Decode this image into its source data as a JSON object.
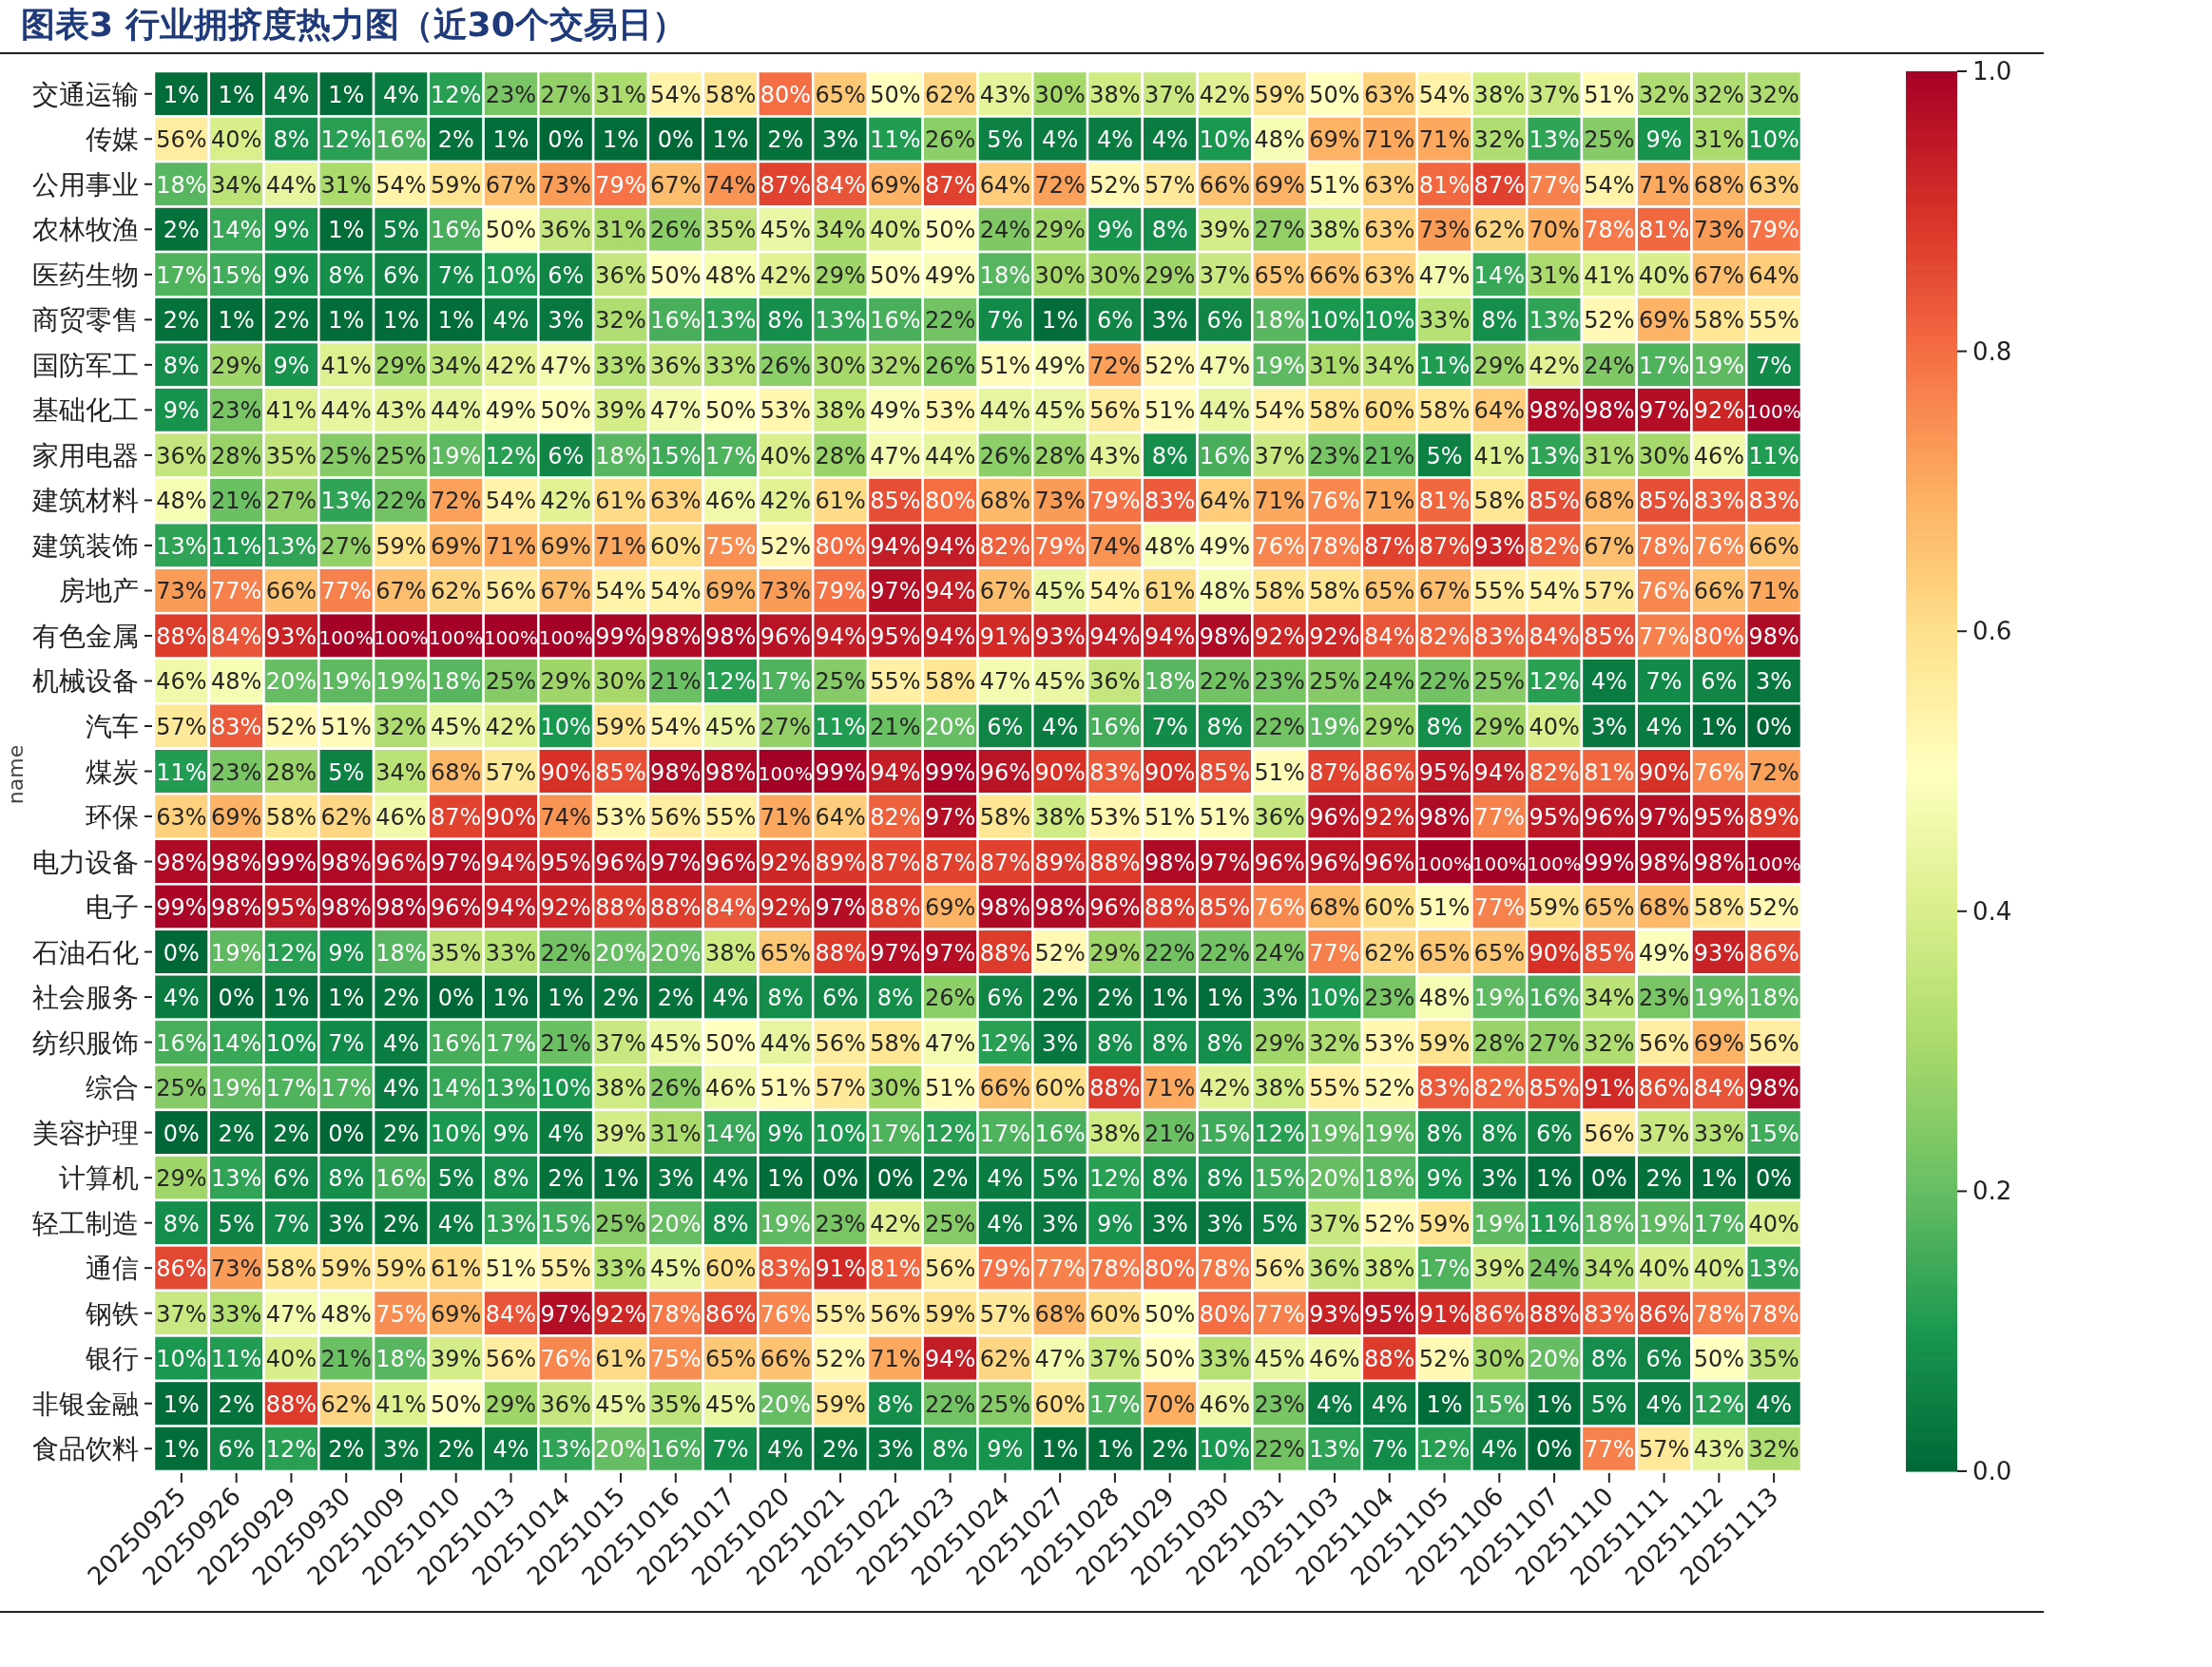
{
  "chart_data": {
    "type": "heatmap",
    "title": "图表3 行业拥挤度热力图（近30个交易日）",
    "ylabel": "name",
    "categories": [
      "20250925",
      "20250926",
      "20250929",
      "20250930",
      "20251009",
      "20251010",
      "20251013",
      "20251014",
      "20251015",
      "20251016",
      "20251017",
      "20251020",
      "20251021",
      "20251022",
      "20251023",
      "20251024",
      "20251027",
      "20251028",
      "20251029",
      "20251030",
      "20251031",
      "20251103",
      "20251104",
      "20251105",
      "20251106",
      "20251107",
      "20251110",
      "20251111",
      "20251112",
      "20251113"
    ],
    "y_categories": [
      "交通运输",
      "传媒",
      "公用事业",
      "农林牧渔",
      "医药生物",
      "商贸零售",
      "国防军工",
      "基础化工",
      "家用电器",
      "建筑材料",
      "建筑装饰",
      "房地产",
      "有色金属",
      "机械设备",
      "汽车",
      "煤炭",
      "环保",
      "电力设备",
      "电子",
      "石油石化",
      "社会服务",
      "纺织服饰",
      "综合",
      "美容护理",
      "计算机",
      "轻工制造",
      "通信",
      "钢铁",
      "银行",
      "非银金融",
      "食品饮料"
    ],
    "cells": [
      [
        0.01,
        0.01,
        0.04,
        0.01,
        0.04,
        0.12,
        0.23,
        0.27,
        0.31,
        0.54,
        0.58,
        0.8,
        0.65,
        0.5,
        0.62,
        0.43,
        0.3,
        0.38,
        0.37,
        0.42,
        0.59,
        0.5,
        0.63,
        0.54,
        0.38,
        0.37,
        0.51,
        0.32,
        0.32,
        0.32
      ],
      [
        0.56,
        0.4,
        0.08,
        0.12,
        0.16,
        0.02,
        0.01,
        0,
        0.01,
        0,
        0.01,
        0.02,
        0.03,
        0.11,
        0.26,
        0.05,
        0.04,
        0.04,
        0.04,
        0.1,
        0.48,
        0.69,
        0.71,
        0.71,
        0.32,
        0.13,
        0.25,
        0.09,
        0.31,
        0.1
      ],
      [
        0.18,
        0.34,
        0.44,
        0.31,
        0.54,
        0.59,
        0.67,
        0.73,
        0.79,
        0.67,
        0.74,
        0.87,
        0.84,
        0.69,
        0.87,
        0.64,
        0.72,
        0.52,
        0.57,
        0.66,
        0.69,
        0.51,
        0.63,
        0.81,
        0.87,
        0.77,
        0.54,
        0.71,
        0.68,
        0.63
      ],
      [
        0.02,
        0.14,
        0.09,
        0.01,
        0.05,
        0.16,
        0.5,
        0.36,
        0.31,
        0.26,
        0.35,
        0.45,
        0.34,
        0.4,
        0.5,
        0.24,
        0.29,
        0.09,
        0.08,
        0.39,
        0.27,
        0.38,
        0.63,
        0.73,
        0.62,
        0.7,
        0.78,
        0.81,
        0.73,
        0.79
      ],
      [
        0.17,
        0.15,
        0.09,
        0.08,
        0.06,
        0.07,
        0.1,
        0.06,
        0.36,
        0.5,
        0.48,
        0.42,
        0.29,
        0.5,
        0.49,
        0.18,
        0.3,
        0.3,
        0.29,
        0.37,
        0.65,
        0.66,
        0.63,
        0.47,
        0.14,
        0.31,
        0.41,
        0.4,
        0.67,
        0.64
      ],
      [
        0.02,
        0.01,
        0.02,
        0.01,
        0.01,
        0.01,
        0.04,
        0.03,
        0.32,
        0.16,
        0.13,
        0.08,
        0.13,
        0.16,
        0.22,
        0.07,
        0.01,
        0.06,
        0.03,
        0.06,
        0.18,
        0.1,
        0.1,
        0.33,
        0.08,
        0.13,
        0.52,
        0.69,
        0.58,
        0.55
      ],
      [
        0.08,
        0.29,
        0.09,
        0.41,
        0.29,
        0.34,
        0.42,
        0.47,
        0.33,
        0.36,
        0.33,
        0.26,
        0.3,
        0.32,
        0.26,
        0.51,
        0.49,
        0.72,
        0.52,
        0.47,
        0.19,
        0.31,
        0.34,
        0.11,
        0.29,
        0.42,
        0.24,
        0.17,
        0.19,
        0.07
      ],
      [
        0.09,
        0.23,
        0.41,
        0.44,
        0.43,
        0.44,
        0.49,
        0.5,
        0.39,
        0.47,
        0.5,
        0.53,
        0.38,
        0.49,
        0.53,
        0.44,
        0.45,
        0.56,
        0.51,
        0.44,
        0.54,
        0.58,
        0.6,
        0.58,
        0.64,
        0.98,
        0.98,
        0.97,
        0.92,
        1
      ],
      [
        0.36,
        0.28,
        0.35,
        0.25,
        0.25,
        0.19,
        0.12,
        0.06,
        0.18,
        0.15,
        0.17,
        0.4,
        0.28,
        0.47,
        0.44,
        0.26,
        0.28,
        0.43,
        0.08,
        0.16,
        0.37,
        0.23,
        0.21,
        0.05,
        0.41,
        0.13,
        0.31,
        0.3,
        0.46,
        0.11
      ],
      [
        0.48,
        0.21,
        0.27,
        0.13,
        0.22,
        0.72,
        0.54,
        0.42,
        0.61,
        0.63,
        0.46,
        0.42,
        0.61,
        0.85,
        0.8,
        0.68,
        0.73,
        0.79,
        0.83,
        0.64,
        0.71,
        0.76,
        0.71,
        0.81,
        0.58,
        0.85,
        0.68,
        0.85,
        0.83,
        0.83
      ],
      [
        0.13,
        0.11,
        0.13,
        0.27,
        0.59,
        0.69,
        0.71,
        0.69,
        0.71,
        0.6,
        0.75,
        0.52,
        0.8,
        0.94,
        0.94,
        0.82,
        0.79,
        0.74,
        0.48,
        0.49,
        0.76,
        0.78,
        0.87,
        0.87,
        0.93,
        0.82,
        0.67,
        0.78,
        0.76,
        0.66
      ],
      [
        0.73,
        0.77,
        0.66,
        0.77,
        0.67,
        0.62,
        0.56,
        0.67,
        0.54,
        0.54,
        0.69,
        0.73,
        0.79,
        0.97,
        0.94,
        0.67,
        0.45,
        0.54,
        0.61,
        0.48,
        0.58,
        0.58,
        0.65,
        0.67,
        0.55,
        0.54,
        0.57,
        0.76,
        0.66,
        0.71
      ],
      [
        0.88,
        0.84,
        0.93,
        1,
        1,
        1,
        1,
        1,
        0.99,
        0.98,
        0.98,
        0.96,
        0.94,
        0.95,
        0.94,
        0.91,
        0.93,
        0.94,
        0.94,
        0.98,
        0.92,
        0.92,
        0.84,
        0.82,
        0.83,
        0.84,
        0.85,
        0.77,
        0.8,
        0.98
      ],
      [
        0.46,
        0.48,
        0.2,
        0.19,
        0.19,
        0.18,
        0.25,
        0.29,
        0.3,
        0.21,
        0.12,
        0.17,
        0.25,
        0.55,
        0.58,
        0.47,
        0.45,
        0.36,
        0.18,
        0.22,
        0.23,
        0.25,
        0.24,
        0.22,
        0.25,
        0.12,
        0.04,
        0.07,
        0.06,
        0.03
      ],
      [
        0.57,
        0.83,
        0.52,
        0.51,
        0.32,
        0.45,
        0.42,
        0.1,
        0.59,
        0.54,
        0.45,
        0.27,
        0.11,
        0.21,
        0.2,
        0.06,
        0.04,
        0.16,
        0.07,
        0.08,
        0.22,
        0.19,
        0.29,
        0.08,
        0.29,
        0.4,
        0.03,
        0.04,
        0.01,
        0
      ],
      [
        0.11,
        0.23,
        0.28,
        0.05,
        0.34,
        0.68,
        0.57,
        0.9,
        0.85,
        0.98,
        0.98,
        1,
        0.99,
        0.94,
        0.99,
        0.96,
        0.9,
        0.83,
        0.9,
        0.85,
        0.51,
        0.87,
        0.86,
        0.95,
        0.94,
        0.82,
        0.81,
        0.9,
        0.76,
        0.72
      ],
      [
        0.63,
        0.69,
        0.58,
        0.62,
        0.46,
        0.87,
        0.9,
        0.74,
        0.53,
        0.56,
        0.55,
        0.71,
        0.64,
        0.82,
        0.97,
        0.58,
        0.38,
        0.53,
        0.51,
        0.51,
        0.36,
        0.96,
        0.92,
        0.98,
        0.77,
        0.95,
        0.96,
        0.97,
        0.95,
        0.89
      ],
      [
        0.98,
        0.98,
        0.99,
        0.98,
        0.96,
        0.97,
        0.94,
        0.95,
        0.96,
        0.97,
        0.96,
        0.92,
        0.89,
        0.87,
        0.87,
        0.87,
        0.89,
        0.88,
        0.98,
        0.97,
        0.96,
        0.96,
        0.96,
        1,
        1,
        1,
        0.99,
        0.98,
        0.98,
        1
      ],
      [
        0.99,
        0.98,
        0.95,
        0.98,
        0.98,
        0.96,
        0.94,
        0.92,
        0.88,
        0.88,
        0.84,
        0.92,
        0.97,
        0.88,
        0.69,
        0.98,
        0.98,
        0.96,
        0.88,
        0.85,
        0.76,
        0.68,
        0.6,
        0.51,
        0.77,
        0.59,
        0.65,
        0.68,
        0.58,
        0.52
      ],
      [
        0,
        0.19,
        0.12,
        0.09,
        0.18,
        0.35,
        0.33,
        0.22,
        0.2,
        0.2,
        0.38,
        0.65,
        0.88,
        0.97,
        0.97,
        0.88,
        0.52,
        0.29,
        0.22,
        0.22,
        0.24,
        0.77,
        0.62,
        0.65,
        0.65,
        0.9,
        0.85,
        0.49,
        0.93,
        0.86
      ],
      [
        0.04,
        0,
        0.01,
        0.01,
        0.02,
        0,
        0.01,
        0.01,
        0.02,
        0.02,
        0.04,
        0.08,
        0.06,
        0.08,
        0.26,
        0.06,
        0.02,
        0.02,
        0.01,
        0.01,
        0.03,
        0.1,
        0.23,
        0.48,
        0.19,
        0.16,
        0.34,
        0.23,
        0.19,
        0.18
      ],
      [
        0.16,
        0.14,
        0.1,
        0.07,
        0.04,
        0.16,
        0.17,
        0.21,
        0.37,
        0.45,
        0.5,
        0.44,
        0.56,
        0.58,
        0.47,
        0.12,
        0.03,
        0.08,
        0.08,
        0.08,
        0.29,
        0.32,
        0.53,
        0.59,
        0.28,
        0.27,
        0.32,
        0.56,
        0.69,
        0.56
      ],
      [
        0.25,
        0.19,
        0.17,
        0.17,
        0.04,
        0.14,
        0.13,
        0.1,
        0.38,
        0.26,
        0.46,
        0.51,
        0.57,
        0.3,
        0.51,
        0.66,
        0.6,
        0.88,
        0.71,
        0.42,
        0.38,
        0.55,
        0.52,
        0.83,
        0.82,
        0.85,
        0.91,
        0.86,
        0.84,
        0.98
      ],
      [
        0,
        0.02,
        0.02,
        0,
        0.02,
        0.1,
        0.09,
        0.04,
        0.39,
        0.31,
        0.14,
        0.09,
        0.1,
        0.17,
        0.12,
        0.17,
        0.16,
        0.38,
        0.21,
        0.15,
        0.12,
        0.19,
        0.19,
        0.08,
        0.08,
        0.06,
        0.56,
        0.37,
        0.33,
        0.15
      ],
      [
        0.29,
        0.13,
        0.06,
        0.08,
        0.16,
        0.05,
        0.08,
        0.02,
        0.01,
        0.03,
        0.04,
        0.01,
        0,
        0,
        0.02,
        0.04,
        0.05,
        0.12,
        0.08,
        0.08,
        0.15,
        0.2,
        0.18,
        0.09,
        0.03,
        0.01,
        0,
        0.02,
        0.01,
        0
      ],
      [
        0.08,
        0.05,
        0.07,
        0.03,
        0.02,
        0.04,
        0.13,
        0.15,
        0.25,
        0.2,
        0.08,
        0.19,
        0.23,
        0.42,
        0.25,
        0.04,
        0.03,
        0.09,
        0.03,
        0.03,
        0.05,
        0.37,
        0.52,
        0.59,
        0.19,
        0.11,
        0.18,
        0.19,
        0.17,
        0.4
      ],
      [
        0.86,
        0.73,
        0.58,
        0.59,
        0.59,
        0.61,
        0.51,
        0.55,
        0.33,
        0.45,
        0.6,
        0.83,
        0.91,
        0.81,
        0.56,
        0.79,
        0.77,
        0.78,
        0.8,
        0.78,
        0.56,
        0.36,
        0.38,
        0.17,
        0.39,
        0.24,
        0.34,
        0.4,
        0.4,
        0.13
      ],
      [
        0.37,
        0.33,
        0.47,
        0.48,
        0.75,
        0.69,
        0.84,
        0.97,
        0.92,
        0.78,
        0.86,
        0.76,
        0.55,
        0.56,
        0.59,
        0.57,
        0.68,
        0.6,
        0.5,
        0.8,
        0.77,
        0.93,
        0.95,
        0.91,
        0.86,
        0.88,
        0.83,
        0.86,
        0.78,
        0.78
      ],
      [
        0.1,
        0.11,
        0.4,
        0.21,
        0.18,
        0.39,
        0.56,
        0.76,
        0.61,
        0.75,
        0.65,
        0.66,
        0.52,
        0.71,
        0.94,
        0.62,
        0.47,
        0.37,
        0.5,
        0.33,
        0.45,
        0.46,
        0.88,
        0.52,
        0.3,
        0.2,
        0.08,
        0.06,
        0.5,
        0.35
      ],
      [
        0.01,
        0.02,
        0.88,
        0.62,
        0.41,
        0.5,
        0.29,
        0.36,
        0.45,
        0.35,
        0.45,
        0.2,
        0.59,
        0.08,
        0.22,
        0.25,
        0.6,
        0.17,
        0.7,
        0.46,
        0.23,
        0.04,
        0.04,
        0.01,
        0.15,
        0.01,
        0.05,
        0.04,
        0.12,
        0.04
      ],
      [
        0.01,
        0.06,
        0.12,
        0.02,
        0.03,
        0.02,
        0.04,
        0.13,
        0.2,
        0.16,
        0.07,
        0.04,
        0.02,
        0.03,
        0.08,
        0.09,
        0.01,
        0.01,
        0.02,
        0.1,
        0.22,
        0.13,
        0.07,
        0.12,
        0.04,
        0,
        0.77,
        0.57,
        0.43,
        0.32
      ]
    ],
    "cell_labels": [
      [
        "1%",
        "1%",
        "4%",
        "1%",
        "4%",
        "12%",
        "23%",
        "27%",
        "31%",
        "54%",
        "58%",
        "80%",
        "65%",
        "50%",
        "62%",
        "43%",
        "30%",
        "38%",
        "37%",
        "42%",
        "59%",
        "50%",
        "63%",
        "54%",
        "38%",
        "37%",
        "51%",
        "32%",
        "32%",
        "32%"
      ],
      [
        "56%",
        "40%",
        "8%",
        "12%",
        "16%",
        "2%",
        "1%",
        "0%",
        "1%",
        "0%",
        "1%",
        "2%",
        "3%",
        "11%",
        "26%",
        "5%",
        "4%",
        "4%",
        "4%",
        "10%",
        "48%",
        "69%",
        "71%",
        "71%",
        "32%",
        "13%",
        "25%",
        "9%",
        "31%",
        "10%"
      ],
      [
        "18%",
        "34%",
        "44%",
        "31%",
        "54%",
        "59%",
        "67%",
        "73%",
        "79%",
        "67%",
        "74%",
        "87%",
        "84%",
        "69%",
        "87%",
        "64%",
        "72%",
        "52%",
        "57%",
        "66%",
        "69%",
        "51%",
        "63%",
        "81%",
        "87%",
        "77%",
        "54%",
        "71%",
        "68%",
        "63%"
      ],
      [
        "2%",
        "14%",
        "9%",
        "1%",
        "5%",
        "16%",
        "50%",
        "36%",
        "31%",
        "26%",
        "35%",
        "45%",
        "34%",
        "40%",
        "50%",
        "24%",
        "29%",
        "9%",
        "8%",
        "39%",
        "27%",
        "38%",
        "63%",
        "73%",
        "62%",
        "70%",
        "78%",
        "81%",
        "73%",
        "79%"
      ],
      [
        "17%",
        "15%",
        "9%",
        "8%",
        "6%",
        "7%",
        "10%",
        "6%",
        "36%",
        "50%",
        "48%",
        "42%",
        "29%",
        "50%",
        "49%",
        "18%",
        "30%",
        "30%",
        "29%",
        "37%",
        "65%",
        "66%",
        "63%",
        "47%",
        "14%",
        "31%",
        "41%",
        "40%",
        "67%",
        "64%"
      ],
      [
        "2%",
        "1%",
        "2%",
        "1%",
        "1%",
        "1%",
        "4%",
        "3%",
        "32%",
        "16%",
        "13%",
        "8%",
        "13%",
        "16%",
        "22%",
        "7%",
        "1%",
        "6%",
        "3%",
        "6%",
        "18%",
        "10%",
        "10%",
        "33%",
        "8%",
        "13%",
        "52%",
        "69%",
        "58%",
        "55%"
      ],
      [
        "8%",
        "29%",
        "9%",
        "41%",
        "29%",
        "34%",
        "42%",
        "47%",
        "33%",
        "36%",
        "33%",
        "26%",
        "30%",
        "32%",
        "26%",
        "51%",
        "49%",
        "72%",
        "52%",
        "47%",
        "19%",
        "31%",
        "34%",
        "11%",
        "29%",
        "42%",
        "24%",
        "17%",
        "19%",
        "7%"
      ],
      [
        "9%",
        "23%",
        "41%",
        "44%",
        "43%",
        "44%",
        "49%",
        "50%",
        "39%",
        "47%",
        "50%",
        "53%",
        "38%",
        "49%",
        "53%",
        "44%",
        "45%",
        "56%",
        "51%",
        "44%",
        "54%",
        "58%",
        "60%",
        "58%",
        "64%",
        "98%",
        "98%",
        "97%",
        "92%",
        "100%"
      ],
      [
        "36%",
        "28%",
        "35%",
        "25%",
        "25%",
        "19%",
        "12%",
        "6%",
        "18%",
        "15%",
        "17%",
        "40%",
        "28%",
        "47%",
        "44%",
        "26%",
        "28%",
        "43%",
        "8%",
        "16%",
        "37%",
        "23%",
        "21%",
        "5%",
        "41%",
        "13%",
        "31%",
        "30%",
        "46%",
        "11%"
      ],
      [
        "48%",
        "21%",
        "27%",
        "13%",
        "22%",
        "72%",
        "54%",
        "42%",
        "61%",
        "63%",
        "46%",
        "42%",
        "61%",
        "85%",
        "80%",
        "68%",
        "73%",
        "79%",
        "83%",
        "64%",
        "71%",
        "76%",
        "71%",
        "81%",
        "58%",
        "85%",
        "68%",
        "85%",
        "83%",
        "83%"
      ],
      [
        "13%",
        "11%",
        "13%",
        "27%",
        "59%",
        "69%",
        "71%",
        "69%",
        "71%",
        "60%",
        "75%",
        "52%",
        "80%",
        "94%",
        "94%",
        "82%",
        "79%",
        "74%",
        "48%",
        "49%",
        "76%",
        "78%",
        "87%",
        "87%",
        "93%",
        "82%",
        "67%",
        "78%",
        "76%",
        "66%"
      ],
      [
        "73%",
        "77%",
        "66%",
        "77%",
        "67%",
        "62%",
        "56%",
        "67%",
        "54%",
        "54%",
        "69%",
        "73%",
        "79%",
        "97%",
        "94%",
        "67%",
        "45%",
        "54%",
        "61%",
        "48%",
        "58%",
        "58%",
        "65%",
        "67%",
        "55%",
        "54%",
        "57%",
        "76%",
        "66%",
        "71%"
      ],
      [
        "88%",
        "84%",
        "93%",
        "100%",
        "100%",
        "100%",
        "100%",
        "100%",
        "99%",
        "98%",
        "98%",
        "96%",
        "94%",
        "95%",
        "94%",
        "91%",
        "93%",
        "94%",
        "94%",
        "98%",
        "92%",
        "92%",
        "84%",
        "82%",
        "83%",
        "84%",
        "85%",
        "77%",
        "80%",
        "98%"
      ],
      [
        "46%",
        "48%",
        "20%",
        "19%",
        "19%",
        "18%",
        "25%",
        "29%",
        "30%",
        "21%",
        "12%",
        "17%",
        "25%",
        "55%",
        "58%",
        "47%",
        "45%",
        "36%",
        "18%",
        "22%",
        "23%",
        "25%",
        "24%",
        "22%",
        "25%",
        "12%",
        "4%",
        "7%",
        "6%",
        "3%"
      ],
      [
        "57%",
        "83%",
        "52%",
        "51%",
        "32%",
        "45%",
        "42%",
        "10%",
        "59%",
        "54%",
        "45%",
        "27%",
        "11%",
        "21%",
        "20%",
        "6%",
        "4%",
        "16%",
        "7%",
        "8%",
        "22%",
        "19%",
        "29%",
        "8%",
        "29%",
        "40%",
        "3%",
        "4%",
        "1%",
        "0%"
      ],
      [
        "11%",
        "23%",
        "28%",
        "5%",
        "34%",
        "68%",
        "57%",
        "90%",
        "85%",
        "98%",
        "98%",
        "100%",
        "99%",
        "94%",
        "99%",
        "96%",
        "90%",
        "83%",
        "90%",
        "85%",
        "51%",
        "87%",
        "86%",
        "95%",
        "94%",
        "82%",
        "81%",
        "90%",
        "76%",
        "72%"
      ],
      [
        "63%",
        "69%",
        "58%",
        "62%",
        "46%",
        "87%",
        "90%",
        "74%",
        "53%",
        "56%",
        "55%",
        "71%",
        "64%",
        "82%",
        "97%",
        "58%",
        "38%",
        "53%",
        "51%",
        "51%",
        "36%",
        "96%",
        "92%",
        "98%",
        "77%",
        "95%",
        "96%",
        "97%",
        "95%",
        "89%"
      ],
      [
        "98%",
        "98%",
        "99%",
        "98%",
        "96%",
        "97%",
        "94%",
        "95%",
        "96%",
        "97%",
        "96%",
        "92%",
        "89%",
        "87%",
        "87%",
        "87%",
        "89%",
        "88%",
        "98%",
        "97%",
        "96%",
        "96%",
        "96%",
        "100%",
        "100%",
        "100%",
        "99%",
        "98%",
        "98%",
        "100%"
      ],
      [
        "99%",
        "98%",
        "95%",
        "98%",
        "98%",
        "96%",
        "94%",
        "92%",
        "88%",
        "88%",
        "84%",
        "92%",
        "97%",
        "88%",
        "69%",
        "98%",
        "98%",
        "96%",
        "88%",
        "85%",
        "76%",
        "68%",
        "60%",
        "51%",
        "77%",
        "59%",
        "65%",
        "68%",
        "58%",
        "52%"
      ],
      [
        "0%",
        "19%",
        "12%",
        "9%",
        "18%",
        "35%",
        "33%",
        "22%",
        "20%",
        "20%",
        "38%",
        "65%",
        "88%",
        "97%",
        "97%",
        "88%",
        "52%",
        "29%",
        "22%",
        "22%",
        "24%",
        "77%",
        "62%",
        "65%",
        "65%",
        "90%",
        "85%",
        "49%",
        "93%",
        "86%"
      ],
      [
        "4%",
        "0%",
        "1%",
        "1%",
        "2%",
        "0%",
        "1%",
        "1%",
        "2%",
        "2%",
        "4%",
        "8%",
        "6%",
        "8%",
        "26%",
        "6%",
        "2%",
        "2%",
        "1%",
        "1%",
        "3%",
        "10%",
        "23%",
        "48%",
        "19%",
        "16%",
        "34%",
        "23%",
        "19%",
        "18%"
      ],
      [
        "16%",
        "14%",
        "10%",
        "7%",
        "4%",
        "16%",
        "17%",
        "21%",
        "37%",
        "45%",
        "50%",
        "44%",
        "56%",
        "58%",
        "47%",
        "12%",
        "3%",
        "8%",
        "8%",
        "8%",
        "29%",
        "32%",
        "53%",
        "59%",
        "28%",
        "27%",
        "32%",
        "56%",
        "69%",
        "56%"
      ],
      [
        "25%",
        "19%",
        "17%",
        "17%",
        "4%",
        "14%",
        "13%",
        "10%",
        "38%",
        "26%",
        "46%",
        "51%",
        "57%",
        "30%",
        "51%",
        "66%",
        "60%",
        "88%",
        "71%",
        "42%",
        "38%",
        "55%",
        "52%",
        "83%",
        "82%",
        "85%",
        "91%",
        "86%",
        "84%",
        "98%"
      ],
      [
        "0%",
        "2%",
        "2%",
        "0%",
        "2%",
        "10%",
        "9%",
        "4%",
        "39%",
        "31%",
        "14%",
        "9%",
        "10%",
        "17%",
        "12%",
        "17%",
        "16%",
        "38%",
        "21%",
        "15%",
        "12%",
        "19%",
        "19%",
        "8%",
        "8%",
        "6%",
        "56%",
        "37%",
        "33%",
        "15%"
      ],
      [
        "29%",
        "13%",
        "6%",
        "8%",
        "16%",
        "5%",
        "8%",
        "2%",
        "1%",
        "3%",
        "4%",
        "1%",
        "0%",
        "0%",
        "2%",
        "4%",
        "5%",
        "12%",
        "8%",
        "8%",
        "15%",
        "20%",
        "18%",
        "9%",
        "3%",
        "1%",
        "0%",
        "2%",
        "1%",
        "0%"
      ],
      [
        "8%",
        "5%",
        "7%",
        "3%",
        "2%",
        "4%",
        "13%",
        "15%",
        "25%",
        "20%",
        "8%",
        "19%",
        "23%",
        "42%",
        "25%",
        "4%",
        "3%",
        "9%",
        "3%",
        "3%",
        "5%",
        "37%",
        "52%",
        "59%",
        "19%",
        "11%",
        "18%",
        "19%",
        "17%",
        "40%"
      ],
      [
        "86%",
        "73%",
        "58%",
        "59%",
        "59%",
        "61%",
        "51%",
        "55%",
        "33%",
        "45%",
        "60%",
        "83%",
        "91%",
        "81%",
        "56%",
        "79%",
        "77%",
        "78%",
        "80%",
        "78%",
        "56%",
        "36%",
        "38%",
        "17%",
        "39%",
        "24%",
        "34%",
        "40%",
        "40%",
        "13%"
      ],
      [
        "37%",
        "33%",
        "47%",
        "48%",
        "75%",
        "69%",
        "84%",
        "97%",
        "92%",
        "78%",
        "86%",
        "76%",
        "55%",
        "56%",
        "59%",
        "57%",
        "68%",
        "60%",
        "50%",
        "80%",
        "77%",
        "93%",
        "95%",
        "91%",
        "86%",
        "88%",
        "83%",
        "86%",
        "78%",
        "78%"
      ],
      [
        "10%",
        "11%",
        "40%",
        "21%",
        "18%",
        "39%",
        "56%",
        "76%",
        "61%",
        "75%",
        "65%",
        "66%",
        "52%",
        "71%",
        "94%",
        "62%",
        "47%",
        "37%",
        "50%",
        "33%",
        "45%",
        "46%",
        "88%",
        "52%",
        "30%",
        "20%",
        "8%",
        "6%",
        "50%",
        "35%"
      ],
      [
        "1%",
        "2%",
        "88%",
        "62%",
        "41%",
        "50%",
        "29%",
        "36%",
        "45%",
        "35%",
        "45%",
        "20%",
        "59%",
        "8%",
        "22%",
        "25%",
        "60%",
        "17%",
        "70%",
        "46%",
        "23%",
        "4%",
        "4%",
        "1%",
        "15%",
        "1%",
        "5%",
        "4%",
        "12%",
        "4%"
      ],
      [
        "1%",
        "6%",
        "12%",
        "2%",
        "3%",
        "2%",
        "4%",
        "13%",
        "20%",
        "16%",
        "7%",
        "4%",
        "2%",
        "3%",
        "8%",
        "9%",
        "1%",
        "1%",
        "2%",
        "10%",
        "22%",
        "13%",
        "7%",
        "12%",
        "4%",
        "0%",
        "77%",
        "57%",
        "43%",
        "32%"
      ]
    ],
    "clim": [
      0,
      1
    ],
    "cticks": [
      {
        "value": 0,
        "label": "0.0"
      },
      0.2,
      0.4,
      0.6,
      0.8,
      {
        "value": 1,
        "label": "1.0"
      }
    ]
  }
}
